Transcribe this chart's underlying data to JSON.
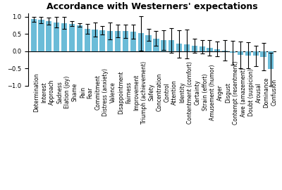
{
  "categories": [
    "Determination",
    "Interest",
    "Approach",
    "Sadness",
    "Elation (joy)",
    "Shame",
    "Pain",
    "Fear",
    "Commitment",
    "Distress (anxiety)",
    "Valence",
    "Disappointment",
    "Fairness",
    "Improvement",
    "Triumph (achievement)",
    "Safety",
    "Concentration",
    "Control",
    "Attention",
    "Identity",
    "Contentment (comfort)",
    "Certainty",
    "Strain (effort)",
    "Amusement (humor)",
    "Anger",
    "Disgust",
    "Contempt (resentment)",
    "Awe (amazement)",
    "Doubt (suspicion)",
    "Arousal",
    "Dominance",
    "Confusion"
  ],
  "values": [
    0.93,
    0.91,
    0.88,
    0.84,
    0.82,
    0.8,
    0.76,
    0.65,
    0.63,
    0.61,
    0.59,
    0.59,
    0.58,
    0.57,
    0.52,
    0.47,
    0.37,
    0.32,
    0.31,
    0.21,
    0.2,
    0.16,
    0.13,
    0.09,
    0.06,
    0.02,
    -0.05,
    -0.11,
    -0.12,
    -0.14,
    -0.17,
    -0.52
  ],
  "errors": [
    0.07,
    0.09,
    0.1,
    0.15,
    0.18,
    0.08,
    0.06,
    0.15,
    0.2,
    0.12,
    0.25,
    0.18,
    0.2,
    0.2,
    0.5,
    0.18,
    0.22,
    0.28,
    0.35,
    0.4,
    0.42,
    0.2,
    0.2,
    0.22,
    0.22,
    0.3,
    0.35,
    0.38,
    0.38,
    0.3,
    0.4,
    0.48
  ],
  "bar_color": "#6bbcd8",
  "error_color": "black",
  "title": "Accordance with Westerners' expectations",
  "ylabel": "",
  "ylim": [
    -1.0,
    1.1
  ],
  "yticks": [
    -1.0,
    -0.5,
    0.0,
    0.5,
    1.0
  ],
  "title_fontsize": 9,
  "tick_fontsize": 6,
  "label_fontsize": 5.5,
  "background_color": "#ffffff"
}
